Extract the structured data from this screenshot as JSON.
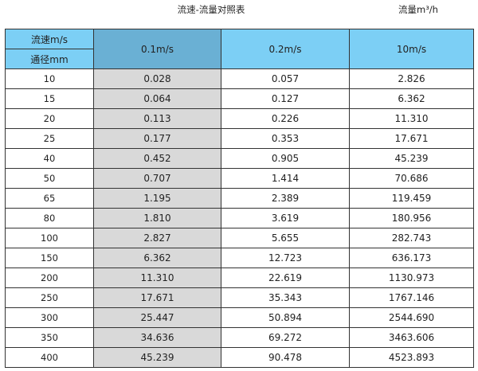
{
  "title": "流速-流量对照表",
  "unit_label": "流量m³/h",
  "header": {
    "velocity_label": "流速m/s",
    "diameter_label": "通径mm",
    "columns": [
      "0.1m/s",
      "0.2m/s",
      "10m/s"
    ]
  },
  "colors": {
    "header_bg": "#7ccff5",
    "selected_header_bg": "#6ab0d4",
    "selected_column_bg": "#d9d9d9"
  },
  "rows": [
    [
      "10",
      "0.028",
      "0.057",
      "2.826"
    ],
    [
      "15",
      "0.064",
      "0.127",
      "6.362"
    ],
    [
      "20",
      "0.113",
      "0.226",
      "11.310"
    ],
    [
      "25",
      "0.177",
      "0.353",
      "17.671"
    ],
    [
      "40",
      "0.452",
      "0.905",
      "45.239"
    ],
    [
      "50",
      "0.707",
      "1.414",
      "70.686"
    ],
    [
      "65",
      "1.195",
      "2.389",
      "119.459"
    ],
    [
      "80",
      "1.810",
      "3.619",
      "180.956"
    ],
    [
      "100",
      "2.827",
      "5.655",
      "282.743"
    ],
    [
      "150",
      "6.362",
      "12.723",
      "636.173"
    ],
    [
      "200",
      "11.310",
      "22.619",
      "1130.973"
    ],
    [
      "250",
      "17.671",
      "35.343",
      "1767.146"
    ],
    [
      "300",
      "25.447",
      "50.894",
      "2544.690"
    ],
    [
      "350",
      "34.636",
      "69.272",
      "3463.606"
    ],
    [
      "400",
      "45.239",
      "90.478",
      "4523.893"
    ]
  ]
}
